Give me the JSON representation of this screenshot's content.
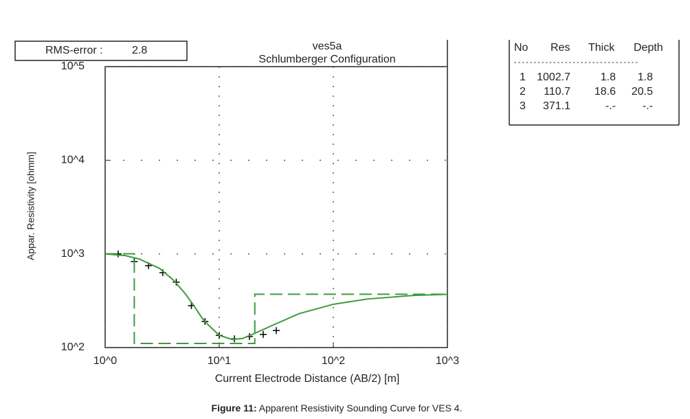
{
  "chart_data": {
    "type": "line",
    "title": "ves5a",
    "subtitle": "Schlumberger Configuration",
    "rms_label": "RMS-error :",
    "rms_value": 2.8,
    "xlabel": "Current Electrode Distance (AB/2) [m]",
    "ylabel": "Appar. Resistivity [ohmm]",
    "xscale": "log",
    "yscale": "log",
    "xlim": [
      1,
      1000
    ],
    "ylim": [
      100,
      100000
    ],
    "xticks": [
      {
        "value": 1,
        "label": "10^0"
      },
      {
        "value": 10,
        "label": "10^1"
      },
      {
        "value": 100,
        "label": "10^2"
      },
      {
        "value": 1000,
        "label": "10^3"
      }
    ],
    "yticks": [
      {
        "value": 100,
        "label": "10^2"
      },
      {
        "value": 1000,
        "label": "10^3"
      },
      {
        "value": 10000,
        "label": "10^4"
      },
      {
        "value": 100000,
        "label": "10^5"
      }
    ],
    "grid": true,
    "series": [
      {
        "style": "markers",
        "color": "#000000",
        "x": [
          1.3,
          1.8,
          2.4,
          3.2,
          4.2,
          5.7,
          7.5,
          10,
          13.6,
          18.4,
          24.3,
          31.6
        ],
        "values": [
          1000,
          830,
          750,
          630,
          500,
          280,
          190,
          135,
          124,
          131,
          138,
          152
        ]
      },
      {
        "style": "solid",
        "color": "#3c9a3c",
        "x": [
          1,
          1.5,
          2,
          3,
          4,
          5,
          6,
          7,
          8,
          10,
          13,
          16,
          20,
          30,
          50,
          100,
          200,
          500,
          1000
        ],
        "values": [
          1000,
          960,
          880,
          700,
          520,
          380,
          280,
          210,
          175,
          135,
          122,
          125,
          140,
          175,
          230,
          290,
          330,
          360,
          370
        ]
      },
      {
        "style": "dashed",
        "color": "#3c9a3c",
        "x": [
          1,
          1.8,
          1.8,
          20.5,
          20.5,
          1000
        ],
        "values": [
          1002.7,
          1002.7,
          110.7,
          110.7,
          371.1,
          371.1
        ]
      }
    ]
  },
  "layer_table": {
    "headers": [
      "No",
      "Res",
      "Thick",
      "Depth"
    ],
    "separator": "--------------------------------",
    "rows": [
      [
        "1",
        "1002.7",
        "1.8",
        "1.8"
      ],
      [
        "2",
        "110.7",
        "18.6",
        "20.5"
      ],
      [
        "3",
        "371.1",
        "-.-",
        "-.-"
      ]
    ]
  },
  "caption": {
    "label": "Figure 11:",
    "text": " Apparent Resistivity Sounding Curve for VES 4."
  }
}
